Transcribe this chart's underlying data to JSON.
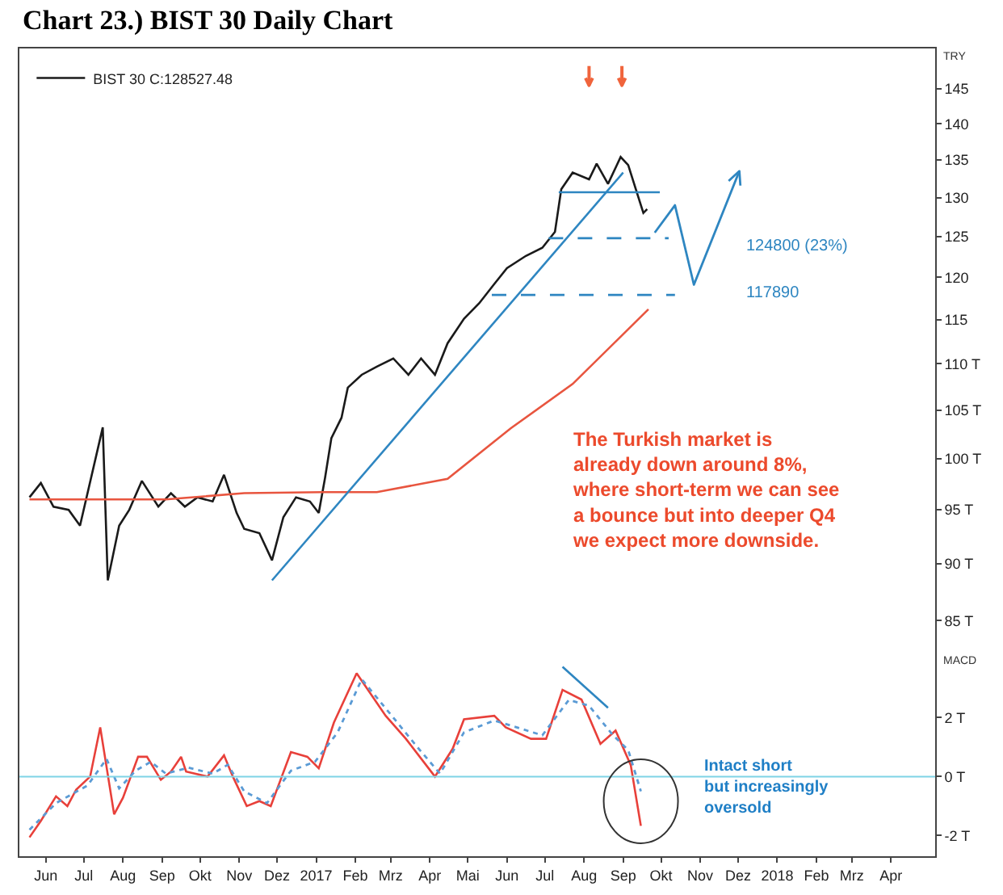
{
  "chart_data": [
    {
      "type": "line",
      "title": "Chart 23.) BIST 30 Daily Chart",
      "ylabel": "TRY",
      "log": true,
      "grid": false,
      "legend": "top left",
      "tick_labels": "y",
      "marker": "none",
      "xlim": [
        "2016-05-25",
        "2018-05-20"
      ],
      "ylim": [
        82.3,
        151
      ],
      "yticks": [
        145,
        140,
        135,
        130,
        125,
        120,
        115,
        {
          "value": 110,
          "label": "110 T"
        },
        {
          "value": 105,
          "label": "105 T"
        },
        {
          "value": 100,
          "label": "100 T"
        },
        {
          "value": 95,
          "label": "95 T"
        },
        {
          "value": 90,
          "label": "90 T"
        },
        {
          "value": 85,
          "label": "85 T"
        }
      ],
      "series": [
        {
          "name": "BIST 30 C:128527.48",
          "color": "#1a1a1a",
          "x": [
            "2016-06-02",
            "2016-06-11",
            "2016-06-21",
            "2016-07-03",
            "2016-07-12",
            "2016-07-30",
            "2016-08-03",
            "2016-08-12",
            "2016-08-20",
            "2016-08-30",
            "2016-09-12",
            "2016-09-22",
            "2016-10-03",
            "2016-10-13",
            "2016-10-25",
            "2016-11-03",
            "2016-11-13",
            "2016-11-19",
            "2016-12-01",
            "2016-12-11",
            "2016-12-20",
            "2016-12-30",
            "2017-01-10",
            "2017-01-17",
            "2017-01-22",
            "2017-01-27",
            "2017-02-04",
            "2017-02-09",
            "2017-02-20",
            "2017-03-04",
            "2017-03-17",
            "2017-03-29",
            "2017-04-08",
            "2017-04-19",
            "2017-04-29",
            "2017-05-12",
            "2017-05-24",
            "2017-06-05",
            "2017-06-15",
            "2017-06-30",
            "2017-07-13",
            "2017-07-23",
            "2017-07-28",
            "2017-08-06",
            "2017-08-19",
            "2017-08-25",
            "2017-09-03",
            "2017-09-13",
            "2017-09-19",
            "2017-09-25",
            "2017-10-01",
            "2017-10-04"
          ],
          "values": [
            96.2,
            97.6,
            95.3,
            95.0,
            93.5,
            103.2,
            88.5,
            93.5,
            95.0,
            97.8,
            95.3,
            96.6,
            95.3,
            96.2,
            95.8,
            98.4,
            94.7,
            93.2,
            92.8,
            90.3,
            94.3,
            96.2,
            95.8,
            94.7,
            98.1,
            102.1,
            104.2,
            107.4,
            108.8,
            109.7,
            110.6,
            108.8,
            110.6,
            108.8,
            112.3,
            115.1,
            116.9,
            119.2,
            121.1,
            122.6,
            123.6,
            125.6,
            131.1,
            133.3,
            132.4,
            134.5,
            131.8,
            135.4,
            134.3,
            131.1,
            128.0,
            128.5
          ]
        },
        {
          "color": "#e8553f",
          "x": [
            "2016-06-02",
            "2016-09-18",
            "2016-11-19",
            "2017-01-20",
            "2017-03-04",
            "2017-04-29",
            "2017-06-18",
            "2017-08-06",
            "2017-10-05"
          ],
          "values": [
            96.0,
            96.0,
            96.6,
            96.7,
            96.7,
            98.0,
            103.1,
            107.8,
            116.2
          ]
        },
        {
          "color": "#2e86c1",
          "x": [
            "2016-12-11",
            "2017-09-15"
          ],
          "values": [
            88.5,
            133.3
          ]
        },
        {
          "color": "#2e86c1",
          "x": [
            "2017-07-26",
            "2017-10-14"
          ],
          "values": [
            130.7,
            130.7
          ]
        },
        {
          "color": "#2e86c1",
          "line_style": "dashed",
          "x": [
            "2017-07-18",
            "2017-10-21"
          ],
          "values": [
            124.8,
            124.8
          ]
        },
        {
          "color": "#2e86c1",
          "line_style": "dashed",
          "x": [
            "2017-06-03",
            "2017-10-26"
          ],
          "values": [
            117.89,
            117.89
          ]
        }
      ],
      "annotations": [
        "124800 (23%)",
        "117890",
        "The Turkish market is\nalready down around 8%,\nwhere short-term we can see\na bounce but into deeper Q4\nwe expect more downside."
      ]
    },
    {
      "type": "line",
      "ylabel": "MACD",
      "grid": false,
      "legend": false,
      "marker": "none",
      "xlim": [
        "2016-05-25",
        "2018-05-20"
      ],
      "ylim": [
        -2.7,
        4.2
      ],
      "xticks": [
        {
          "value": "2016-06-15",
          "label": "Jun"
        },
        {
          "value": "2016-07-15",
          "label": "Jul"
        },
        {
          "value": "2016-08-15",
          "label": "Aug"
        },
        {
          "value": "2016-09-15",
          "label": "Sep"
        },
        {
          "value": "2016-10-15",
          "label": "Okt"
        },
        {
          "value": "2016-11-15",
          "label": "Nov"
        },
        {
          "value": "2016-12-15",
          "label": "Dez"
        },
        {
          "value": "2017-01-15",
          "label": "2017"
        },
        {
          "value": "2017-02-15",
          "label": "Feb"
        },
        {
          "value": "2017-03-15",
          "label": "Mrz"
        },
        {
          "value": "2017-04-15",
          "label": "Apr"
        },
        {
          "value": "2017-05-15",
          "label": "Mai"
        },
        {
          "value": "2017-06-15",
          "label": "Jun"
        },
        {
          "value": "2017-07-15",
          "label": "Jul"
        },
        {
          "value": "2017-08-15",
          "label": "Aug"
        },
        {
          "value": "2017-09-15",
          "label": "Sep"
        },
        {
          "value": "2017-10-15",
          "label": "Okt"
        },
        {
          "value": "2017-11-15",
          "label": "Nov"
        },
        {
          "value": "2017-12-15",
          "label": "Dez"
        },
        {
          "value": "2018-01-15",
          "label": "2018"
        },
        {
          "value": "2018-02-15",
          "label": "Feb"
        },
        {
          "value": "2018-03-15",
          "label": "Mrz"
        },
        {
          "value": "2018-04-15",
          "label": "Apr"
        }
      ],
      "yticks": [
        {
          "value": 2,
          "label": "2 T"
        },
        {
          "value": 0,
          "label": "0 T"
        },
        {
          "value": -2,
          "label": "-2 T"
        }
      ],
      "series": [
        {
          "color": "#e8403a",
          "x": [
            "2016-06-02",
            "2016-06-11",
            "2016-06-23",
            "2016-07-02",
            "2016-07-09",
            "2016-07-20",
            "2016-07-28",
            "2016-08-08",
            "2016-08-15",
            "2016-08-27",
            "2016-09-03",
            "2016-09-14",
            "2016-09-22",
            "2016-09-30",
            "2016-10-04",
            "2016-10-21",
            "2016-11-03",
            "2016-11-10",
            "2016-11-21",
            "2016-12-01",
            "2016-12-10",
            "2016-12-26",
            "2017-01-08",
            "2017-01-17",
            "2017-01-29",
            "2017-02-16",
            "2017-03-11",
            "2017-03-27",
            "2017-04-19",
            "2017-05-03",
            "2017-05-12",
            "2017-06-05",
            "2017-06-14",
            "2017-07-04",
            "2017-07-16",
            "2017-07-29",
            "2017-08-13",
            "2017-08-28",
            "2017-09-09",
            "2017-09-21",
            "2017-09-29"
          ],
          "values": [
            -2.06,
            -1.5,
            -0.67,
            -1.0,
            -0.44,
            0,
            1.67,
            -1.28,
            -0.72,
            0.67,
            0.67,
            -0.11,
            0.17,
            0.67,
            0.17,
            0,
            0.72,
            0,
            -1.0,
            -0.83,
            -1.0,
            0.83,
            0.67,
            0.28,
            1.83,
            3.5,
            2.06,
            1.28,
            0,
            0.94,
            1.94,
            2.06,
            1.67,
            1.28,
            1.28,
            2.94,
            2.61,
            1.11,
            1.56,
            0.39,
            -1.67
          ]
        },
        {
          "color": "#5b9bd5",
          "line_style": "dotted",
          "x": [
            "2016-06-02",
            "2016-06-23",
            "2016-07-18",
            "2016-08-02",
            "2016-08-12",
            "2016-08-25",
            "2016-09-06",
            "2016-09-18",
            "2016-10-06",
            "2016-10-25",
            "2016-11-06",
            "2016-11-19",
            "2016-12-07",
            "2016-12-26",
            "2017-01-14",
            "2017-02-01",
            "2017-02-20",
            "2017-03-17",
            "2017-04-05",
            "2017-04-23",
            "2017-05-12",
            "2017-06-05",
            "2017-07-13",
            "2017-08-03",
            "2017-08-19",
            "2017-09-07",
            "2017-09-19",
            "2017-09-29"
          ],
          "values": [
            -1.8,
            -0.9,
            -0.3,
            0.6,
            -0.4,
            0.2,
            0.5,
            0.1,
            0.3,
            0.1,
            0.4,
            -0.5,
            -0.9,
            0.2,
            0.5,
            1.5,
            3.3,
            2.0,
            1.0,
            0.1,
            1.5,
            1.9,
            1.4,
            2.6,
            2.4,
            1.4,
            0.9,
            -0.5
          ]
        },
        {
          "color": "#2e86c1",
          "x": [
            "2017-07-29",
            "2017-09-03"
          ],
          "values": [
            3.72,
            2.33
          ]
        }
      ],
      "ref_lines": [
        {
          "axis": "y",
          "value": 0,
          "color": "#7fd3e6"
        }
      ],
      "annotations": [
        "Intact short\nbut increasingly\noversold"
      ]
    }
  ]
}
